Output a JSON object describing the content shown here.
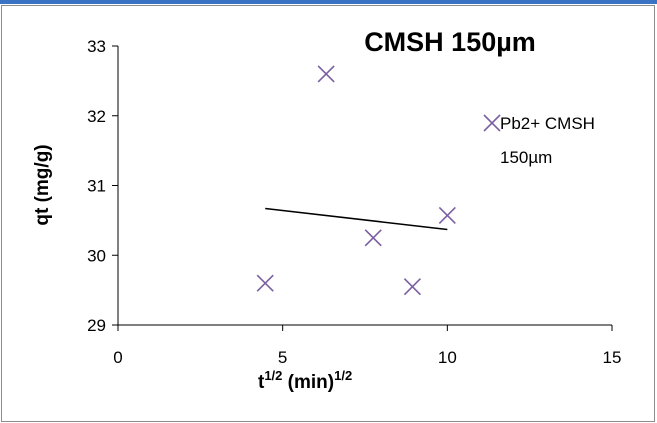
{
  "chart_data": {
    "type": "scatter",
    "title": "CMSH 150µm",
    "ylabel": "qt  (mg/g)",
    "xlabel": {
      "base": "t",
      "sup1": "1/2",
      "middle": " (min)",
      "sup2": "1/2"
    },
    "xlim": [
      0,
      15
    ],
    "ylim": [
      29,
      33
    ],
    "x_ticks": [
      0,
      5,
      10,
      15
    ],
    "y_ticks": [
      29,
      30,
      31,
      32,
      33
    ],
    "grid": false,
    "legend_position": "right",
    "series": [
      {
        "name": "Pb2+ CMSH 150µm",
        "legend_lines": [
          "Pb2+ CMSH",
          "150µm"
        ],
        "marker": "x",
        "color": "#7b5fa3",
        "points": [
          {
            "x": 4.47,
            "y": 29.6
          },
          {
            "x": 6.32,
            "y": 32.6
          },
          {
            "x": 7.75,
            "y": 30.25
          },
          {
            "x": 8.94,
            "y": 29.55
          },
          {
            "x": 10.0,
            "y": 30.57
          }
        ]
      }
    ],
    "trendline": {
      "type": "linear",
      "color": "#000000",
      "x_range": [
        4.47,
        10.0
      ],
      "y_start": 30.67,
      "y_end": 30.37
    }
  },
  "colors": {
    "frame_border": "#8c8c8c",
    "top_bar": "#3b73c4",
    "axis": "#000000"
  }
}
